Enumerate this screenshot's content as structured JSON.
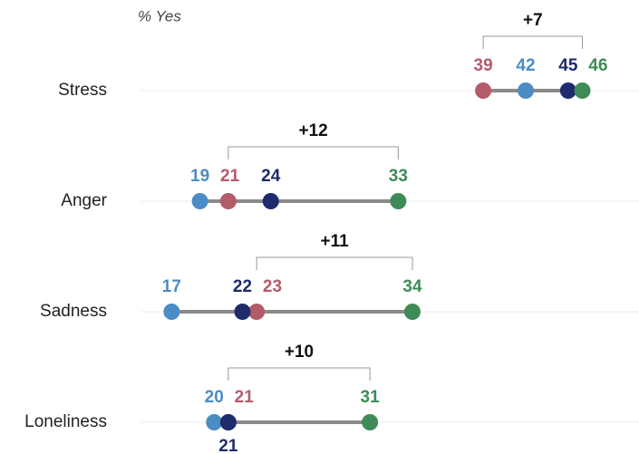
{
  "chart_data": {
    "type": "dot",
    "subtitle": "% Yes",
    "categories": [
      "Stress",
      "Anger",
      "Sadness",
      "Loneliness"
    ],
    "series": [
      {
        "color": "#b25b69",
        "values": [
          39,
          21,
          23,
          21
        ]
      },
      {
        "color": "#4b8cc5",
        "values": [
          42,
          19,
          17,
          20
        ]
      },
      {
        "color": "#1e2b6c",
        "values": [
          45,
          24,
          22,
          21
        ]
      },
      {
        "color": "#3e8b57",
        "values": [
          46,
          33,
          34,
          31
        ]
      }
    ],
    "annotations": [
      "+7",
      "+12",
      "+11",
      "+10"
    ],
    "xlim": [
      10,
      50
    ],
    "grid": true
  }
}
